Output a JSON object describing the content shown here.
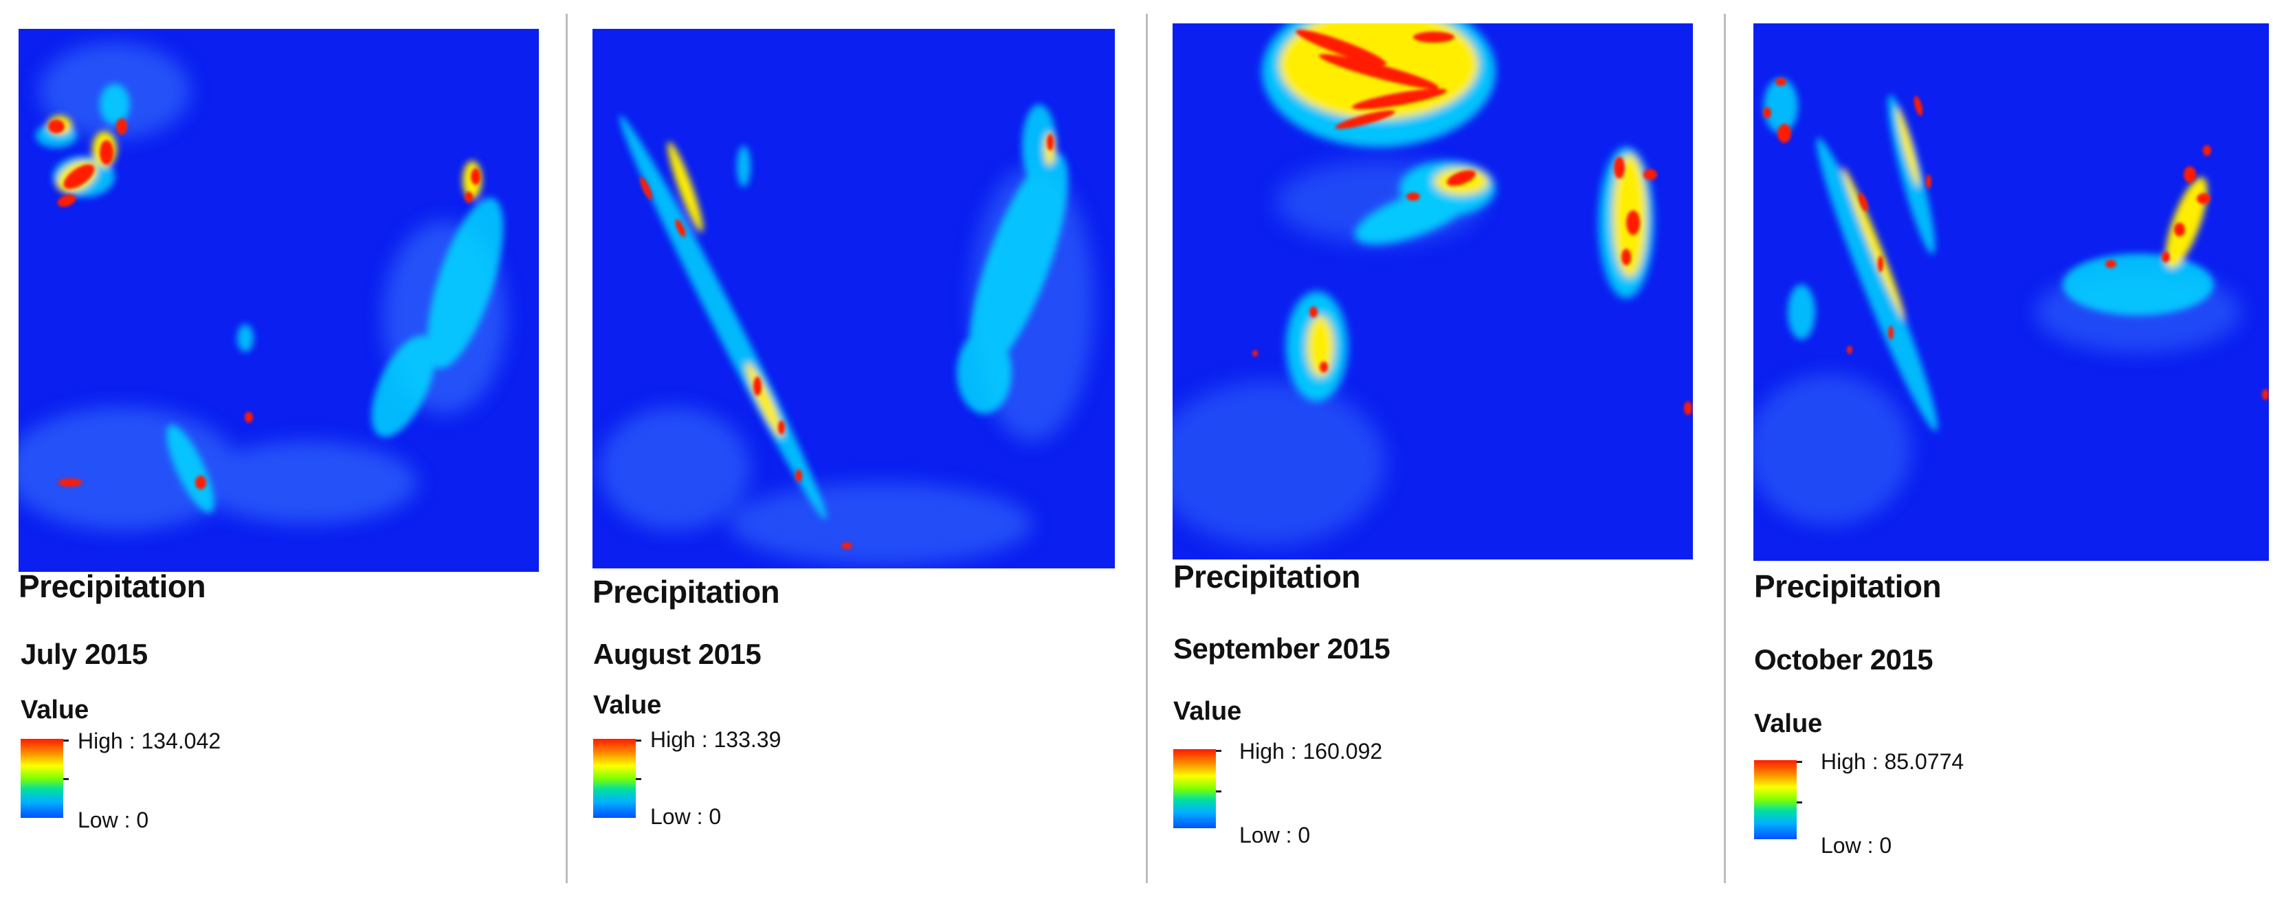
{
  "colors": {
    "background_blue": "#0a1ff0",
    "ramp_high": "#ff1a00",
    "ramp_low": "#0050ff",
    "divider": "#bdbdbd"
  },
  "panels": [
    {
      "title": "Precipitation",
      "period": "July 2015",
      "legend_title": "Value",
      "high": "High : 134.042",
      "low": "Low : 0"
    },
    {
      "title": "Precipitation",
      "period": "August 2015",
      "legend_title": "Value",
      "high": "High : 133.39",
      "low": "Low : 0"
    },
    {
      "title": "Precipitation",
      "period": "September 2015",
      "legend_title": "Value",
      "high": "High : 160.092",
      "low": "Low : 0"
    },
    {
      "title": "Precipitation",
      "period": "October 2015",
      "legend_title": "Value",
      "high": "High : 85.0774",
      "low": "Low : 0"
    }
  ]
}
